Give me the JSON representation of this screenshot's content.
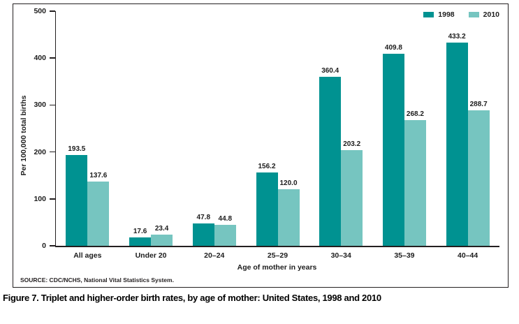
{
  "figure": {
    "caption": "Figure 7. Triplet and higher-order birth rates, by age of mother: United States, 1998 and 2010",
    "source": "SOURCE: CDC/NCHS, National Vital Statistics System."
  },
  "chart_data": {
    "type": "bar",
    "title": "",
    "categories": [
      "All ages",
      "Under 20",
      "20–24",
      "25–29",
      "30–34",
      "35–39",
      "40–44"
    ],
    "series": [
      {
        "name": "1998",
        "color": "#009291",
        "values": [
          193.5,
          17.6,
          47.8,
          156.2,
          360.4,
          409.8,
          433.2
        ]
      },
      {
        "name": "2010",
        "color": "#76C5C0",
        "values": [
          137.6,
          23.4,
          44.8,
          120.0,
          203.2,
          268.2,
          288.7
        ]
      }
    ],
    "xlabel": "Age of mother in years",
    "ylabel": "Per 100,000 total births",
    "ylim": [
      0,
      500
    ],
    "yticks": [
      0,
      100,
      200,
      300,
      400,
      500
    ],
    "grid": false,
    "legend_position": "top-right",
    "value_labels": true,
    "value_label_decimals": 1
  }
}
